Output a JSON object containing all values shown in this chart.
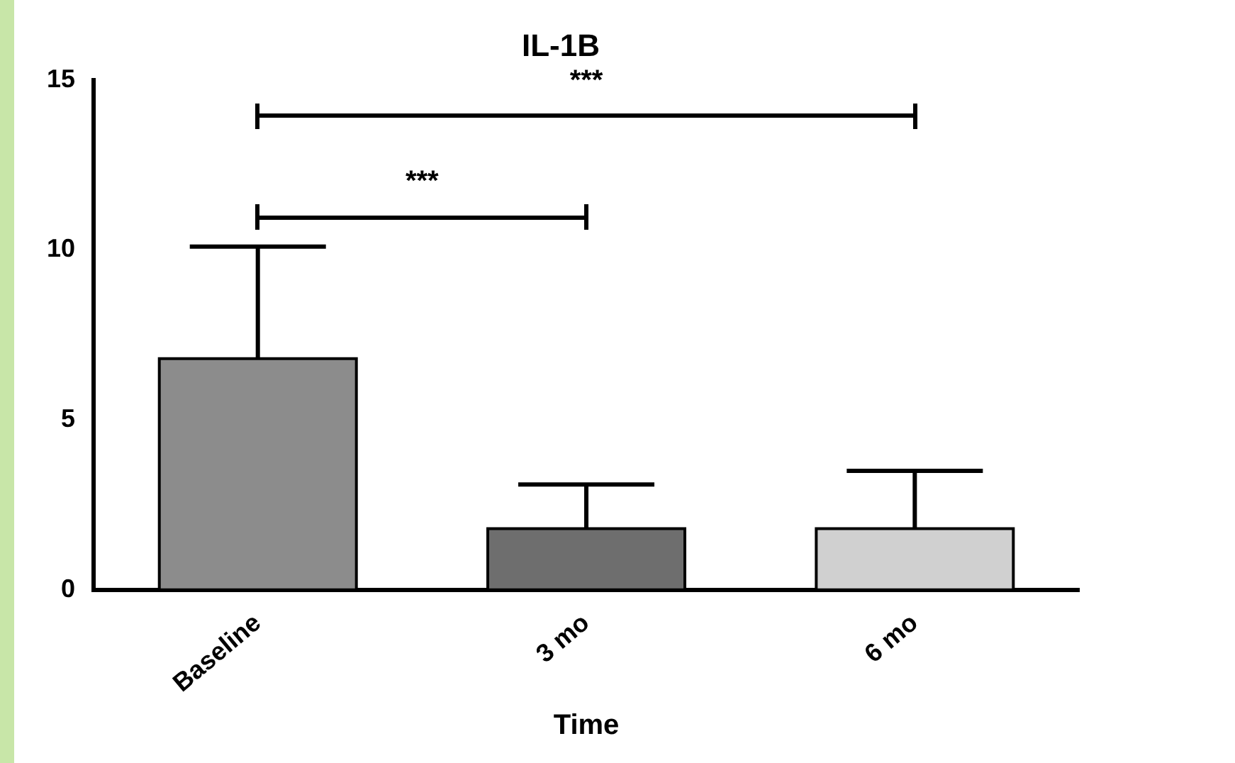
{
  "chart_data": {
    "type": "bar",
    "title": "IL-1B",
    "xlabel": "Time",
    "categories": [
      "Baseline",
      "3 mo",
      "6 mo"
    ],
    "values": [
      6.8,
      1.8,
      1.8
    ],
    "colors": [
      "#8c8c8c",
      "#6e6e6e",
      "#d0d0d0"
    ],
    "errors": [
      [
        6.8,
        10.1
      ],
      [
        1.8,
        3.1
      ],
      [
        1.8,
        3.5
      ]
    ],
    "ylim": [
      0,
      15
    ],
    "yticks": [
      0,
      5,
      10,
      15
    ],
    "grid": false,
    "legend": false,
    "annotations": [
      "***",
      "***"
    ]
  }
}
